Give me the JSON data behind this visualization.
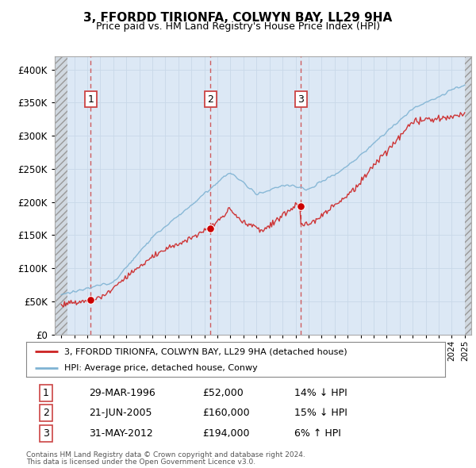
{
  "title": "3, FFORDD TIRIONFA, COLWYN BAY, LL29 9HA",
  "subtitle": "Price paid vs. HM Land Registry's House Price Index (HPI)",
  "legend_line1": "3, FFORDD TIRIONFA, COLWYN BAY, LL29 9HA (detached house)",
  "legend_line2": "HPI: Average price, detached house, Conwy",
  "footer1": "Contains HM Land Registry data © Crown copyright and database right 2024.",
  "footer2": "This data is licensed under the Open Government Licence v3.0.",
  "transactions": [
    {
      "num": 1,
      "date": "29-MAR-1996",
      "price": 52000,
      "hpi_rel": "14% ↓ HPI",
      "year": 1996.25
    },
    {
      "num": 2,
      "date": "21-JUN-2005",
      "price": 160000,
      "hpi_rel": "15% ↓ HPI",
      "year": 2005.47
    },
    {
      "num": 3,
      "date": "31-MAY-2012",
      "price": 194000,
      "hpi_rel": "6% ↑ HPI",
      "year": 2012.41
    }
  ],
  "hpi_color": "#7fb3d3",
  "price_color": "#cc2222",
  "transaction_marker_color": "#cc0000",
  "dashed_line_color": "#cc4444",
  "background_plot": "#dce8f5",
  "grid_color": "#c8d8e8",
  "ylim": [
    0,
    420000
  ],
  "xlim_start": 1993.5,
  "xlim_end": 2025.5
}
